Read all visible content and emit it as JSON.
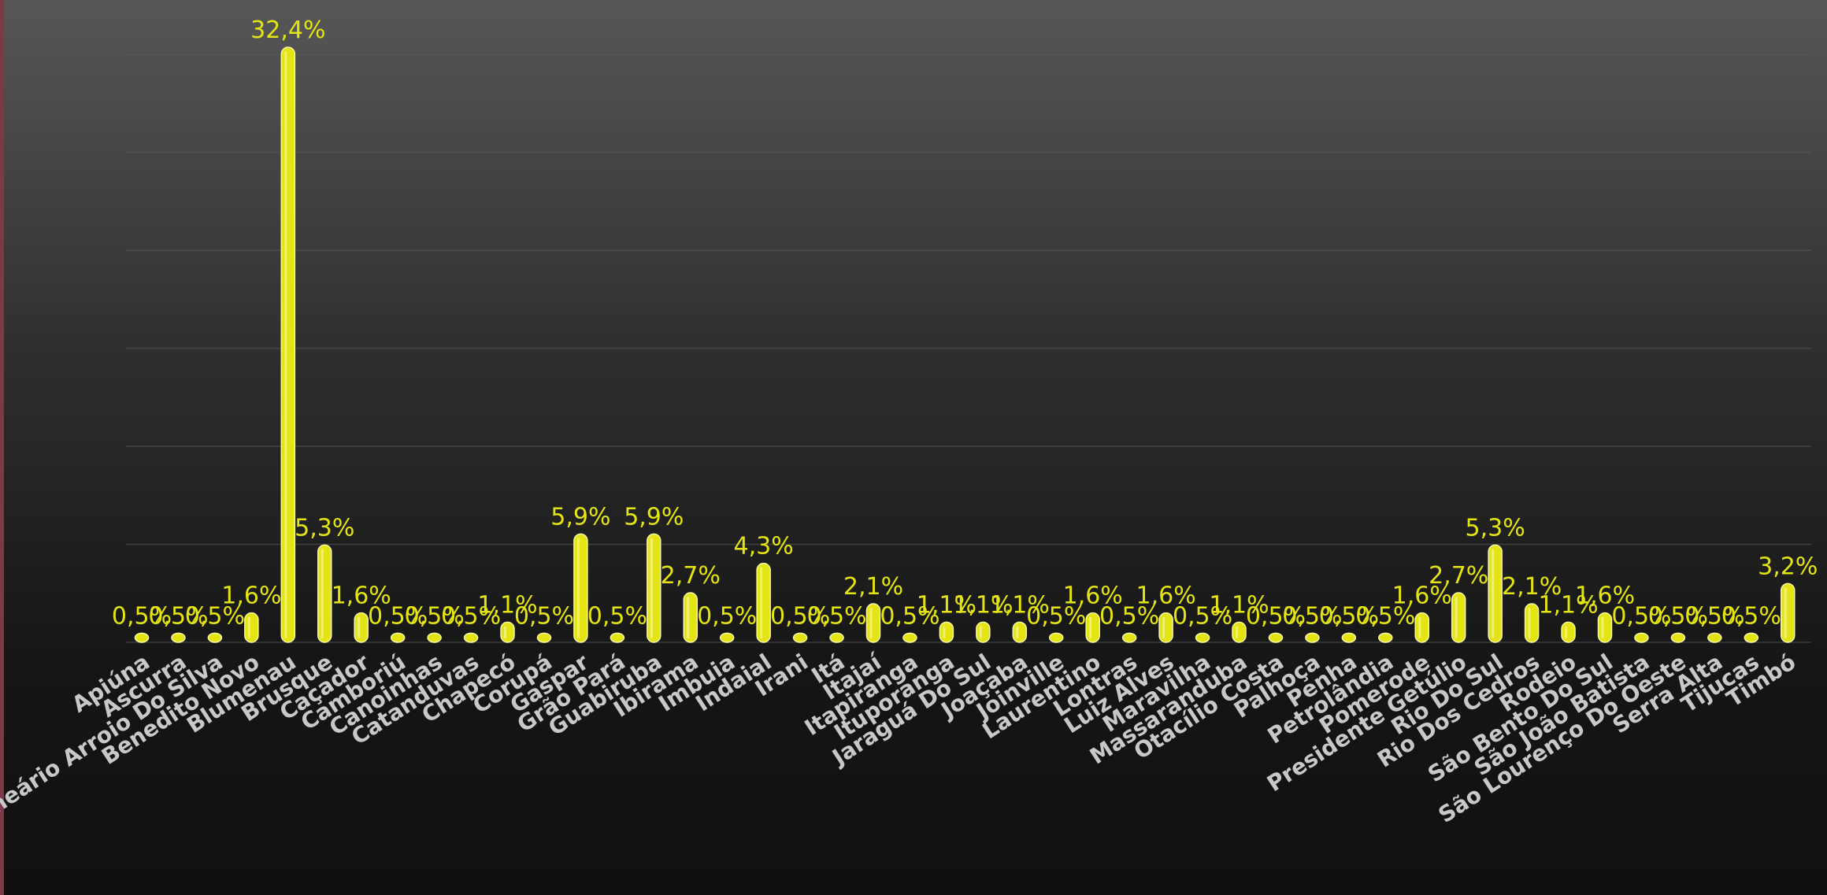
{
  "chart_data": {
    "type": "bar",
    "categories": [
      "Apiúna",
      "Ascurra",
      "Balneário Arroio Do Silva",
      "Benedito Novo",
      "Blumenau",
      "Brusque",
      "Caçador",
      "Camboriú",
      "Canoinhas",
      "Catanduvas",
      "Chapecó",
      "Corupá",
      "Gaspar",
      "Grão Pará",
      "Guabiruba",
      "Ibirama",
      "Imbuia",
      "Indaial",
      "Irani",
      "Itá",
      "Itajaí",
      "Itapiranga",
      "Ituporanga",
      "Jaraguá Do Sul",
      "Joaçaba",
      "Joinville",
      "Laurentino",
      "Lontras",
      "Luiz Alves",
      "Maravilha",
      "Massaranduba",
      "Otacílio Costa",
      "Palhoça",
      "Penha",
      "Petrolândia",
      "Pomerode",
      "Presidente Getúlio",
      "Rio Do Sul",
      "Rio Dos Cedros",
      "Rodeio",
      "São Bento Do Sul",
      "São João Batista",
      "São Lourenço Do Oeste",
      "Serra Alta",
      "Tijucas",
      "Timbó"
    ],
    "values": [
      0.5,
      0.5,
      0.5,
      1.6,
      32.4,
      5.3,
      1.6,
      0.5,
      0.5,
      0.5,
      1.1,
      0.5,
      5.9,
      0.5,
      5.9,
      2.7,
      0.5,
      4.3,
      0.5,
      0.5,
      2.1,
      0.5,
      1.1,
      1.1,
      1.1,
      0.5,
      1.6,
      0.5,
      1.6,
      0.5,
      1.1,
      0.5,
      0.5,
      0.5,
      0.5,
      1.6,
      2.7,
      5.3,
      2.1,
      1.1,
      1.6,
      0.5,
      0.5,
      0.5,
      0.5,
      3.2
    ],
    "labels": [
      "0,5%",
      "0,5%",
      "0,5%",
      "1,6%",
      "32,4%",
      "5,3%",
      "1,6%",
      "0,5%",
      "0,5%",
      "0,5%",
      "1,1%",
      "0,5%",
      "5,9%",
      "0,5%",
      "5,9%",
      "2,7%",
      "0,5%",
      "4,3%",
      "0,5%",
      "0,5%",
      "2,1%",
      "0,5%",
      "1,1%",
      "1,1%",
      "1,1%",
      "0,5%",
      "1,6%",
      "0,5%",
      "1,6%",
      "0,5%",
      "1,1%",
      "0,5%",
      "0,5%",
      "0,5%",
      "0,5%",
      "1,6%",
      "2,7%",
      "5,3%",
      "2,1%",
      "1,1%",
      "1,6%",
      "0,5%",
      "0,5%",
      "0,5%",
      "0,5%",
      "3,2%"
    ],
    "ylim": [
      0,
      32.4
    ],
    "grid": true,
    "legend": "none",
    "colors": {
      "bar": "#e4e413",
      "bar_highlight": "#fafac0",
      "label": "#e4e413",
      "tick": "#c8c8c8",
      "grid": "#5a5a5a"
    }
  }
}
